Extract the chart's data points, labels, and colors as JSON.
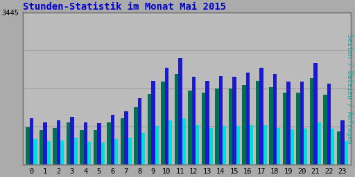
{
  "title": "Stunden-Statistik im Monat Mai 2015",
  "ylabel_right": "Seiten / Dateien / Anfragen",
  "hours": [
    0,
    1,
    2,
    3,
    4,
    5,
    6,
    7,
    8,
    9,
    10,
    11,
    12,
    13,
    14,
    15,
    16,
    17,
    18,
    19,
    20,
    21,
    22,
    23
  ],
  "seiten": [
    850,
    780,
    830,
    960,
    780,
    780,
    960,
    1050,
    1300,
    1600,
    1880,
    2050,
    1680,
    1630,
    1720,
    1720,
    1800,
    1890,
    1760,
    1630,
    1630,
    1960,
    1590,
    750
  ],
  "dateien": [
    1050,
    960,
    1000,
    1090,
    960,
    940,
    1130,
    1210,
    1510,
    1890,
    2200,
    2410,
    1990,
    1890,
    2010,
    1990,
    2090,
    2200,
    2050,
    1880,
    1880,
    2300,
    1840,
    1000
  ],
  "anfragen": [
    580,
    540,
    560,
    610,
    520,
    500,
    580,
    610,
    730,
    880,
    1000,
    1050,
    900,
    840,
    880,
    880,
    900,
    900,
    840,
    800,
    820,
    960,
    820,
    540
  ],
  "color_seiten": "#007050",
  "color_dateien": "#1a1acc",
  "color_anfragen": "#00dddd",
  "bg_color": "#aaaaaa",
  "plot_bg": "#bbbbbb",
  "grid_color": "#999999",
  "title_color": "#0000cc",
  "ylabel_right_color": "#00aaaa",
  "bar_width": 0.28,
  "ylim": [
    0,
    3445
  ],
  "ymax_label": "3445",
  "title_fontsize": 10,
  "tick_fontsize": 7.5,
  "ylabel_right_fontsize": 7
}
